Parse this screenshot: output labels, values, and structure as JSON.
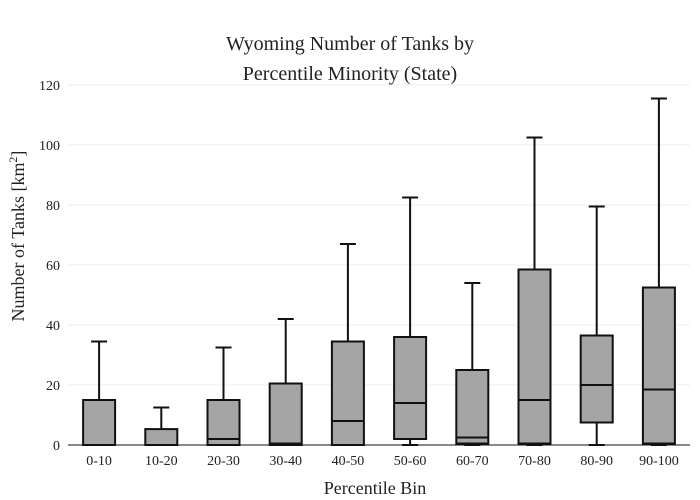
{
  "chart_data": {
    "type": "box",
    "title_line1": "Wyoming Number of Tanks by",
    "title_line2": "Percentile Minority (State)",
    "xlabel": "Percentile Bin",
    "ylabel_main": "Number of Tanks  [km",
    "ylabel_sup": "2",
    "ylabel_end": "]",
    "ylim": [
      0,
      120
    ],
    "yticks": [
      0,
      20,
      40,
      60,
      80,
      100,
      120
    ],
    "grid": true,
    "categories": [
      "0-10",
      "10-20",
      "20-30",
      "30-40",
      "40-50",
      "50-60",
      "60-70",
      "70-80",
      "80-90",
      "90-100"
    ],
    "boxes": [
      {
        "min": 0,
        "q1": 0,
        "median": 0,
        "q3": 15,
        "max": 34.5
      },
      {
        "min": 0,
        "q1": 0,
        "median": 0,
        "q3": 5.3,
        "max": 12.5
      },
      {
        "min": 0,
        "q1": 0,
        "median": 2,
        "q3": 15,
        "max": 32.5
      },
      {
        "min": 0,
        "q1": 0,
        "median": 0.5,
        "q3": 20.5,
        "max": 42
      },
      {
        "min": 0,
        "q1": 0,
        "median": 8,
        "q3": 34.5,
        "max": 67
      },
      {
        "min": 0,
        "q1": 2,
        "median": 14,
        "q3": 36,
        "max": 82.5
      },
      {
        "min": 0,
        "q1": 0.5,
        "median": 2.5,
        "q3": 25,
        "max": 54
      },
      {
        "min": 0,
        "q1": 0.5,
        "median": 15,
        "q3": 58.5,
        "max": 102.5
      },
      {
        "min": 0,
        "q1": 7.5,
        "median": 20,
        "q3": 36.5,
        "max": 79.5
      },
      {
        "min": 0,
        "q1": 0.5,
        "median": 18.5,
        "q3": 52.5,
        "max": 115.5
      }
    ],
    "box_color": "#a5a5a5",
    "line_color": "#111111"
  }
}
